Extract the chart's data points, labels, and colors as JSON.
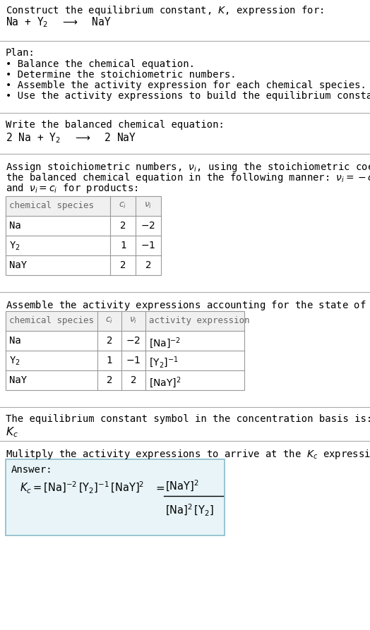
{
  "title_line1": "Construct the equilibrium constant, $K$, expression for:",
  "title_line2": "Na + Y$_2$  $\\longrightarrow$  NaY",
  "plan_header": "Plan:",
  "plan_bullets": [
    "Balance the chemical equation.",
    "Determine the stoichiometric numbers.",
    "Assemble the activity expression for each chemical species.",
    "Use the activity expressions to build the equilibrium constant expression."
  ],
  "balanced_eq_header": "Write the balanced chemical equation:",
  "balanced_eq": "2 Na + Y$_2$  $\\longrightarrow$  2 NaY",
  "stoich_intro1": "Assign stoichiometric numbers, $\\nu_i$, using the stoichiometric coefficients, $c_i$, from",
  "stoich_intro2": "the balanced chemical equation in the following manner: $\\nu_i = -c_i$ for reactants",
  "stoich_intro3": "and $\\nu_i = c_i$ for products:",
  "table1_headers": [
    "chemical species",
    "$c_i$",
    "$\\nu_i$"
  ],
  "table1_rows": [
    [
      "Na",
      "2",
      "$-2$"
    ],
    [
      "Y$_2$",
      "1",
      "$-1$"
    ],
    [
      "NaY",
      "2",
      "2"
    ]
  ],
  "activity_intro": "Assemble the activity expressions accounting for the state of matter and $\\nu_i$:",
  "table2_headers": [
    "chemical species",
    "$c_i$",
    "$\\nu_i$",
    "activity expression"
  ],
  "table2_rows": [
    [
      "Na",
      "2",
      "$-2$",
      "$[\\mathrm{Na}]^{-2}$"
    ],
    [
      "Y$_2$",
      "1",
      "$-1$",
      "$[\\mathrm{Y_2}]^{-1}$"
    ],
    [
      "NaY",
      "2",
      "2",
      "$[\\mathrm{NaY}]^{2}$"
    ]
  ],
  "kc_text": "The equilibrium constant symbol in the concentration basis is:",
  "kc_symbol": "$K_c$",
  "multiply_text": "Mulitply the activity expressions to arrive at the $K_c$ expression:",
  "answer_label": "Answer:",
  "bg_color": "#ffffff",
  "table_header_bg": "#f0f0f0",
  "answer_box_bg": "#e8f4f8",
  "answer_box_border": "#88bbcc",
  "separator_color": "#aaaaaa",
  "text_color": "#000000",
  "gray_text": "#666666",
  "font_family": "DejaVu Sans Mono"
}
